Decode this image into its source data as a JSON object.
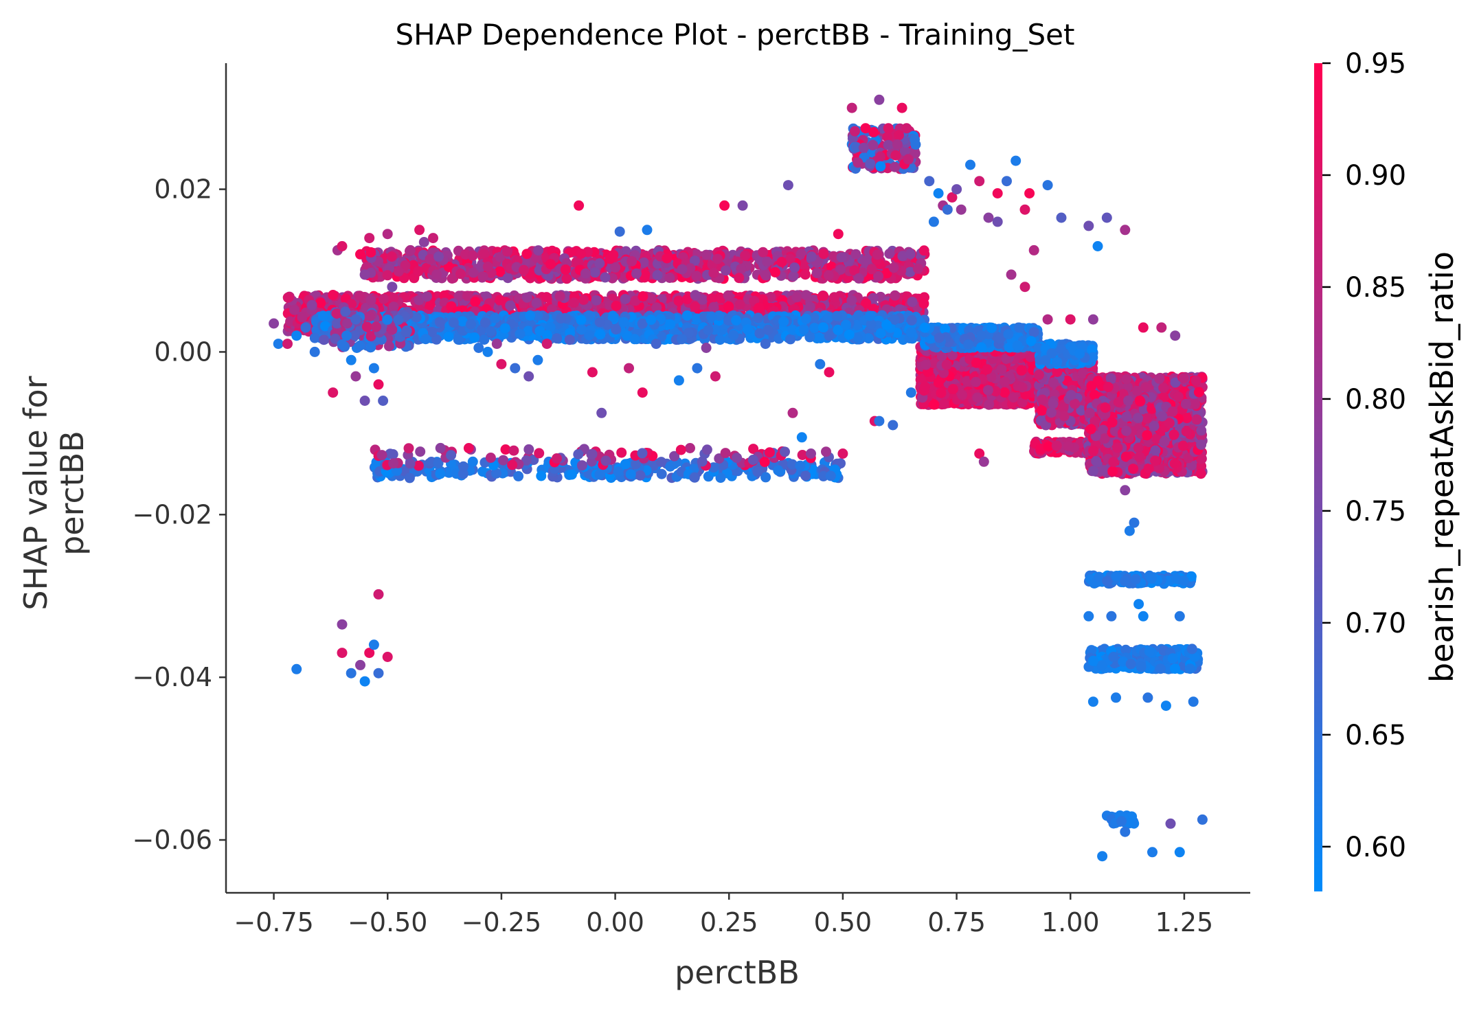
{
  "chart_data": {
    "type": "scatter",
    "title": "SHAP Dependence Plot - perctBB - Training_Set",
    "xlabel": "perctBB",
    "ylabel": "SHAP value for\nperctBB",
    "xlim": [
      -0.855,
      1.395
    ],
    "ylim": [
      -0.0665,
      0.0355
    ],
    "x_ticks": [
      -0.75,
      -0.5,
      -0.25,
      0.0,
      0.25,
      0.5,
      0.75,
      1.0,
      1.25
    ],
    "x_tick_labels": [
      "−0.75",
      "−0.50",
      "−0.25",
      "0.00",
      "0.25",
      "0.50",
      "0.75",
      "1.00",
      "1.25"
    ],
    "y_ticks": [
      0.02,
      0.0,
      -0.02,
      -0.04,
      -0.06
    ],
    "y_tick_labels": [
      "0.02",
      "0.00",
      "−0.02",
      "−0.04",
      "−0.06"
    ],
    "colorbar": {
      "label": "bearish_repeatAskBid_ratio",
      "range": [
        0.58,
        0.95
      ],
      "ticks": [
        0.6,
        0.65,
        0.7,
        0.75,
        0.8,
        0.85,
        0.9,
        0.95
      ],
      "tick_labels": [
        "0.60",
        "0.65",
        "0.70",
        "0.75",
        "0.80",
        "0.85",
        "0.90",
        "0.95"
      ],
      "colors": [
        "#008bfb",
        "#ff0051"
      ]
    },
    "grid": false,
    "legend": "none",
    "series": [
      {
        "points": [
          [
            -0.75,
            0.0035,
            0.78
          ],
          [
            -0.74,
            0.001,
            0.62
          ],
          [
            -0.72,
            0.001,
            0.88
          ],
          [
            -0.7,
            0.002,
            0.6
          ],
          [
            -0.68,
            0.003,
            0.66
          ],
          [
            -0.66,
            0.0,
            0.64
          ],
          [
            -0.64,
            0.0015,
            0.72
          ],
          [
            -0.62,
            0.007,
            0.93
          ],
          [
            -0.61,
            0.0125,
            0.82
          ],
          [
            -0.6,
            0.013,
            0.9
          ],
          [
            -0.58,
            -0.001,
            0.61
          ],
          [
            -0.57,
            -0.003,
            0.8
          ],
          [
            -0.56,
            0.012,
            0.94
          ],
          [
            -0.55,
            0.0095,
            0.78
          ],
          [
            -0.54,
            0.014,
            0.88
          ],
          [
            -0.53,
            -0.002,
            0.62
          ],
          [
            -0.52,
            -0.004,
            0.92
          ],
          [
            -0.51,
            -0.006,
            0.7
          ],
          [
            -0.5,
            0.0145,
            0.84
          ],
          [
            -0.49,
            0.008,
            0.76
          ],
          [
            -0.62,
            -0.005,
            0.9
          ],
          [
            -0.59,
            0.002,
            0.63
          ],
          [
            -0.57,
            0.004,
            0.68
          ],
          [
            -0.55,
            -0.006,
            0.74
          ],
          [
            -0.45,
            0.0125,
            0.83
          ],
          [
            -0.43,
            0.015,
            0.9
          ],
          [
            -0.42,
            0.0135,
            0.78
          ],
          [
            -0.4,
            0.014,
            0.87
          ],
          [
            -0.3,
            0.0005,
            0.64
          ],
          [
            -0.28,
            0.0,
            0.61
          ],
          [
            -0.26,
            0.001,
            0.8
          ],
          [
            -0.25,
            -0.0015,
            0.9
          ],
          [
            -0.22,
            -0.002,
            0.66
          ],
          [
            -0.19,
            -0.003,
            0.74
          ],
          [
            -0.17,
            -0.001,
            0.62
          ],
          [
            -0.15,
            0.001,
            0.88
          ],
          [
            -0.1,
            0.0015,
            0.7
          ],
          [
            -0.08,
            0.018,
            0.93
          ],
          [
            -0.05,
            -0.0025,
            0.91
          ],
          [
            -0.03,
            -0.0075,
            0.74
          ],
          [
            0.01,
            0.0148,
            0.66
          ],
          [
            0.03,
            -0.002,
            0.86
          ],
          [
            0.06,
            -0.005,
            0.92
          ],
          [
            0.07,
            0.015,
            0.62
          ],
          [
            0.09,
            0.001,
            0.68
          ],
          [
            0.14,
            -0.0035,
            0.61
          ],
          [
            0.18,
            -0.002,
            0.64
          ],
          [
            0.2,
            0.0005,
            0.78
          ],
          [
            0.22,
            -0.003,
            0.88
          ],
          [
            0.24,
            0.018,
            0.94
          ],
          [
            0.28,
            0.018,
            0.76
          ],
          [
            0.33,
            0.001,
            0.67
          ],
          [
            0.38,
            0.0205,
            0.74
          ],
          [
            0.39,
            -0.0075,
            0.84
          ],
          [
            0.41,
            -0.0105,
            0.6
          ],
          [
            0.43,
            -0.0125,
            0.79
          ],
          [
            0.45,
            -0.0015,
            0.63
          ],
          [
            0.47,
            -0.0025,
            0.92
          ],
          [
            0.49,
            0.0145,
            0.93
          ],
          [
            0.5,
            -0.0125,
            0.9
          ],
          [
            0.52,
            0.03,
            0.86
          ],
          [
            0.55,
            0.0275,
            0.94
          ],
          [
            0.58,
            0.031,
            0.78
          ],
          [
            0.6,
            0.0275,
            0.9
          ],
          [
            0.62,
            0.0255,
            0.82
          ],
          [
            0.63,
            0.03,
            0.92
          ],
          [
            0.64,
            0.0275,
            0.88
          ],
          [
            0.57,
            -0.0085,
            0.9
          ],
          [
            0.58,
            -0.0085,
            0.64
          ],
          [
            0.61,
            -0.009,
            0.66
          ],
          [
            0.65,
            -0.005,
            0.63
          ],
          [
            0.66,
            0.0255,
            0.64
          ],
          [
            0.69,
            0.021,
            0.68
          ],
          [
            0.71,
            0.0195,
            0.6
          ],
          [
            0.72,
            0.018,
            0.82
          ],
          [
            0.74,
            0.019,
            0.9
          ],
          [
            0.75,
            0.02,
            0.74
          ],
          [
            0.76,
            0.0175,
            0.8
          ],
          [
            0.78,
            0.023,
            0.62
          ],
          [
            0.8,
            0.021,
            0.88
          ],
          [
            0.82,
            0.0165,
            0.78
          ],
          [
            0.84,
            0.0195,
            0.93
          ],
          [
            0.86,
            0.021,
            0.66
          ],
          [
            0.88,
            0.0235,
            0.62
          ],
          [
            0.9,
            0.0175,
            0.9
          ],
          [
            0.91,
            0.0195,
            0.94
          ],
          [
            0.92,
            0.0125,
            0.84
          ],
          [
            0.95,
            0.0205,
            0.64
          ],
          [
            0.98,
            0.0165,
            0.7
          ],
          [
            1.04,
            0.0155,
            0.74
          ],
          [
            1.06,
            0.013,
            0.6
          ],
          [
            1.08,
            0.0165,
            0.72
          ],
          [
            1.12,
            0.015,
            0.82
          ],
          [
            1.16,
            0.003,
            0.92
          ],
          [
            1.2,
            0.003,
            0.86
          ],
          [
            1.23,
            0.002,
            0.78
          ],
          [
            0.7,
            0.016,
            0.63
          ],
          [
            0.73,
            0.0175,
            0.66
          ],
          [
            0.8,
            -0.0125,
            0.92
          ],
          [
            0.81,
            -0.0135,
            0.8
          ],
          [
            0.84,
            0.016,
            0.74
          ],
          [
            0.87,
            0.0095,
            0.82
          ],
          [
            0.9,
            0.008,
            0.88
          ],
          [
            0.95,
            0.004,
            0.84
          ],
          [
            1.0,
            0.004,
            0.9
          ],
          [
            1.05,
            0.004,
            0.79
          ],
          [
            1.12,
            -0.017,
            0.78
          ],
          [
            1.13,
            -0.022,
            0.62
          ],
          [
            1.14,
            -0.021,
            0.64
          ],
          [
            1.15,
            -0.031,
            0.6
          ],
          [
            1.04,
            -0.0325,
            0.62
          ],
          [
            1.09,
            -0.0325,
            0.64
          ],
          [
            1.16,
            -0.0325,
            0.6
          ],
          [
            1.24,
            -0.0325,
            0.63
          ],
          [
            1.05,
            -0.043,
            0.61
          ],
          [
            1.1,
            -0.0425,
            0.62
          ],
          [
            1.17,
            -0.0425,
            0.64
          ],
          [
            1.21,
            -0.0435,
            0.6
          ],
          [
            1.27,
            -0.043,
            0.63
          ],
          [
            1.07,
            -0.062,
            0.61
          ],
          [
            1.12,
            -0.059,
            0.64
          ],
          [
            1.18,
            -0.0615,
            0.62
          ],
          [
            1.24,
            -0.0615,
            0.6
          ],
          [
            1.29,
            -0.0575,
            0.65
          ],
          [
            1.22,
            -0.058,
            0.74
          ],
          [
            -0.7,
            -0.039,
            0.62
          ],
          [
            -0.6,
            -0.0335,
            0.78
          ],
          [
            -0.52,
            -0.0298,
            0.88
          ],
          [
            -0.6,
            -0.037,
            0.9
          ],
          [
            -0.58,
            -0.0395,
            0.64
          ],
          [
            -0.56,
            -0.0385,
            0.78
          ],
          [
            -0.54,
            -0.037,
            0.92
          ],
          [
            -0.52,
            -0.0395,
            0.66
          ],
          [
            -0.5,
            -0.0375,
            0.9
          ],
          [
            -0.53,
            -0.036,
            0.62
          ],
          [
            -0.55,
            -0.0405,
            0.6
          ]
        ]
      }
    ],
    "bands": [
      {
        "x": [
          -0.72,
          0.68
        ],
        "y": [
          0.0025,
          0.007
        ],
        "c": [
          0.78,
          0.95
        ],
        "n": 1800
      },
      {
        "x": [
          -0.66,
          0.68
        ],
        "y": [
          0.0015,
          0.0045
        ],
        "c": [
          0.58,
          0.68
        ],
        "n": 1100
      },
      {
        "x": [
          -0.55,
          0.68
        ],
        "y": [
          0.009,
          0.0125
        ],
        "c": [
          0.76,
          0.95
        ],
        "n": 900
      },
      {
        "x": [
          -0.62,
          -0.45
        ],
        "y": [
          0.0005,
          0.005
        ],
        "c": [
          0.6,
          0.9
        ],
        "n": 150
      },
      {
        "x": [
          -0.53,
          0.5
        ],
        "y": [
          -0.0155,
          -0.0135
        ],
        "c": [
          0.58,
          0.7
        ],
        "n": 260
      },
      {
        "x": [
          -0.53,
          0.5
        ],
        "y": [
          -0.014,
          -0.0118
        ],
        "c": [
          0.7,
          0.95
        ],
        "n": 90
      },
      {
        "x": [
          0.52,
          0.66
        ],
        "y": [
          0.0225,
          0.0275
        ],
        "c": [
          0.58,
          0.95
        ],
        "n": 150
      },
      {
        "x": [
          0.67,
          0.92
        ],
        "y": [
          -0.0065,
          0.0008
        ],
        "c": [
          0.82,
          0.95
        ],
        "n": 2000
      },
      {
        "x": [
          0.68,
          0.93
        ],
        "y": [
          0.0005,
          0.003
        ],
        "c": [
          0.58,
          0.68
        ],
        "n": 500
      },
      {
        "x": [
          0.93,
          1.05
        ],
        "y": [
          -0.009,
          -0.001
        ],
        "c": [
          0.75,
          0.95
        ],
        "n": 700
      },
      {
        "x": [
          0.93,
          1.05
        ],
        "y": [
          -0.0015,
          0.001
        ],
        "c": [
          0.58,
          0.66
        ],
        "n": 150
      },
      {
        "x": [
          0.92,
          1.05
        ],
        "y": [
          -0.0125,
          -0.011
        ],
        "c": [
          0.8,
          0.95
        ],
        "n": 120
      },
      {
        "x": [
          1.04,
          1.29
        ],
        "y": [
          -0.015,
          -0.003
        ],
        "c": [
          0.75,
          0.95
        ],
        "n": 1600
      },
      {
        "x": [
          1.04,
          1.27
        ],
        "y": [
          -0.0285,
          -0.0275
        ],
        "c": [
          0.58,
          0.66
        ],
        "n": 140
      },
      {
        "x": [
          1.04,
          1.28
        ],
        "y": [
          -0.039,
          -0.0365
        ],
        "c": [
          0.58,
          0.66
        ],
        "n": 240
      },
      {
        "x": [
          1.08,
          1.14
        ],
        "y": [
          -0.058,
          -0.057
        ],
        "c": [
          0.6,
          0.64
        ],
        "n": 25
      }
    ]
  }
}
